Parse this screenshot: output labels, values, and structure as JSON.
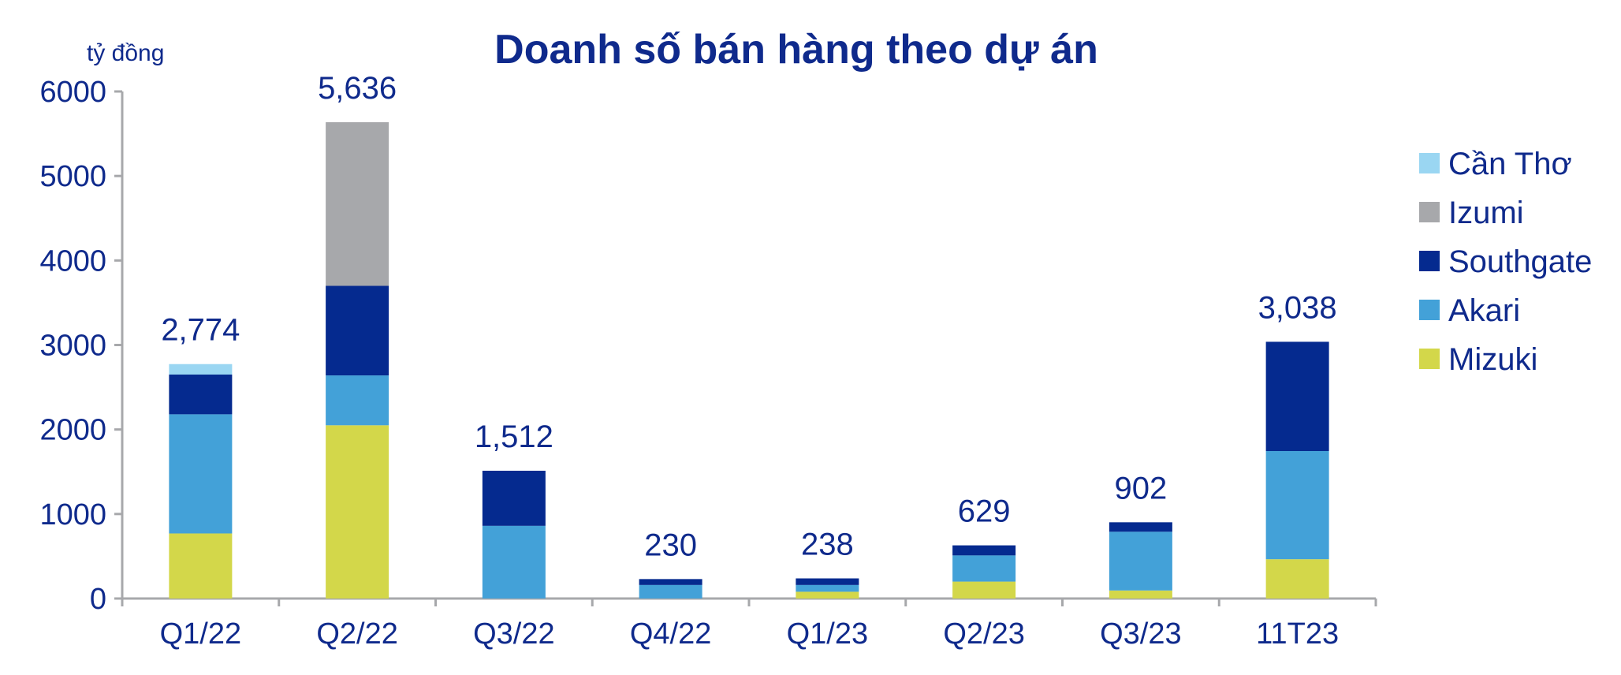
{
  "chart_data": {
    "type": "bar",
    "stacked": true,
    "title": "Doanh số bán hàng theo dự án",
    "unit_label": "tỷ đồng",
    "categories": [
      "Q1/22",
      "Q2/22",
      "Q3/22",
      "Q4/22",
      "Q1/23",
      "Q2/23",
      "Q3/23",
      "11T23"
    ],
    "totals": [
      "2,774",
      "5,636",
      "1,512",
      "230",
      "238",
      "629",
      "902",
      "3,038"
    ],
    "yticks": [
      "0",
      "1000",
      "2000",
      "3000",
      "4000",
      "5000",
      "6000"
    ],
    "ylim": [
      0,
      6000
    ],
    "grid": false,
    "legend_position": "right",
    "series": [
      {
        "name": "Mizuki",
        "color": "#d3d74a",
        "values": [
          770,
          2050,
          0,
          0,
          80,
          200,
          95,
          465
        ]
      },
      {
        "name": "Akari",
        "color": "#43a1d8",
        "values": [
          1410,
          590,
          860,
          160,
          80,
          310,
          695,
          1280
        ]
      },
      {
        "name": "Southgate",
        "color": "#052a8f",
        "values": [
          470,
          1060,
          652,
          70,
          78,
          119,
          112,
          1293
        ]
      },
      {
        "name": "Izumi",
        "color": "#a7a8ab",
        "values": [
          0,
          1936,
          0,
          0,
          0,
          0,
          0,
          0
        ]
      },
      {
        "name": "Cần Thơ",
        "color": "#9ad6f2",
        "values": [
          124,
          0,
          0,
          0,
          0,
          0,
          0,
          0
        ]
      }
    ],
    "legend_order": [
      "Cần Thơ",
      "Izumi",
      "Southgate",
      "Akari",
      "Mizuki"
    ],
    "text_color": "#0f2a8c",
    "axis_color": "#a7a8ab"
  }
}
